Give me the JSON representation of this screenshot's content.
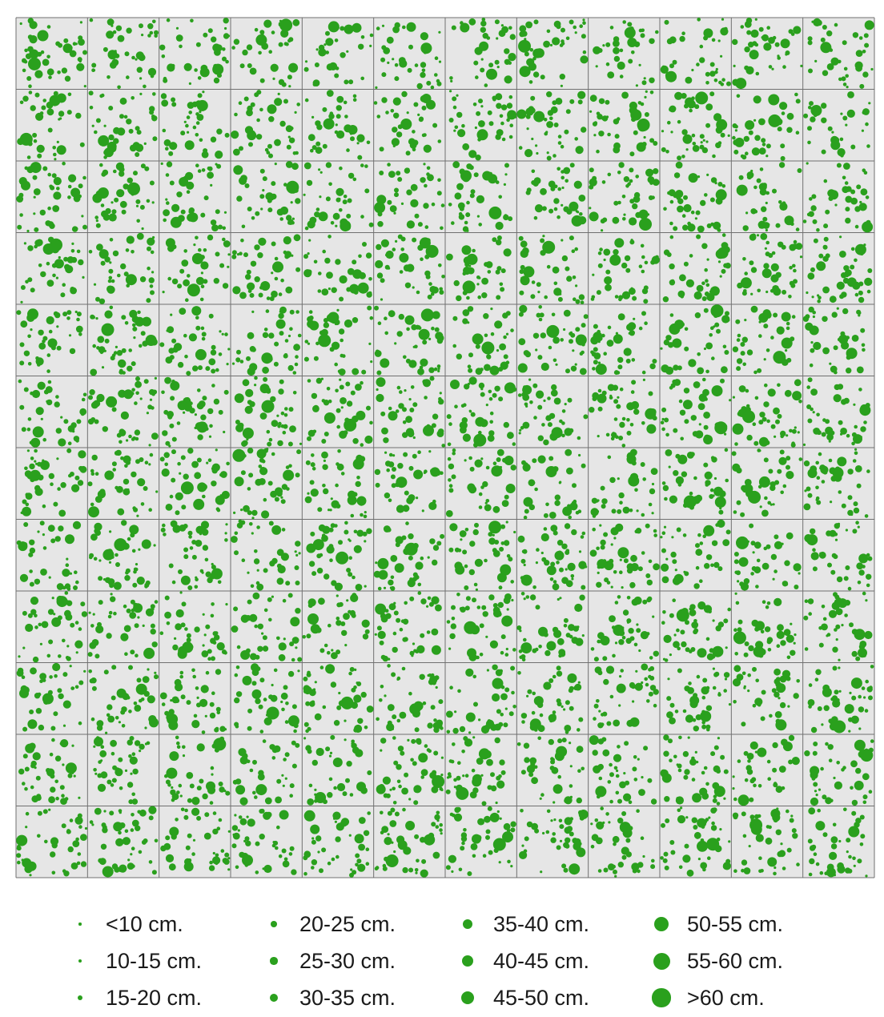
{
  "colors": {
    "background": "#e6e6e6",
    "grid": "#707070",
    "tree": "#2aa01d",
    "text": "#1a1a1a"
  },
  "map": {
    "grid_columns": 12,
    "grid_rows": 12,
    "seed": 7
  },
  "legend": {
    "classes": [
      {
        "label": "<10 cm.",
        "symbol_size": 1,
        "density": 1.4
      },
      {
        "label": "10-15 cm.",
        "symbol_size": 2,
        "density": 2.6
      },
      {
        "label": "15-20 cm.",
        "symbol_size": 3,
        "density": 2.2
      },
      {
        "label": "20-25 cm.",
        "symbol_size": 4,
        "density": 1.3
      },
      {
        "label": "25-30 cm.",
        "symbol_size": 5,
        "density": 1.0
      },
      {
        "label": "30-35 cm.",
        "symbol_size": 6,
        "density": 0.8
      },
      {
        "label": "35-40 cm.",
        "symbol_size": 7,
        "density": 0.45
      },
      {
        "label": "40-45 cm.",
        "symbol_size": 8,
        "density": 0.3
      },
      {
        "label": "45-50 cm.",
        "symbol_size": 9,
        "density": 0.22
      },
      {
        "label": "50-55 cm.",
        "symbol_size": 10,
        "density": 0.15
      },
      {
        "label": "55-60 cm.",
        "symbol_size": 11,
        "density": 0.1
      },
      {
        "label": ">60 cm.",
        "symbol_size": 12,
        "density": 0.08
      }
    ]
  }
}
